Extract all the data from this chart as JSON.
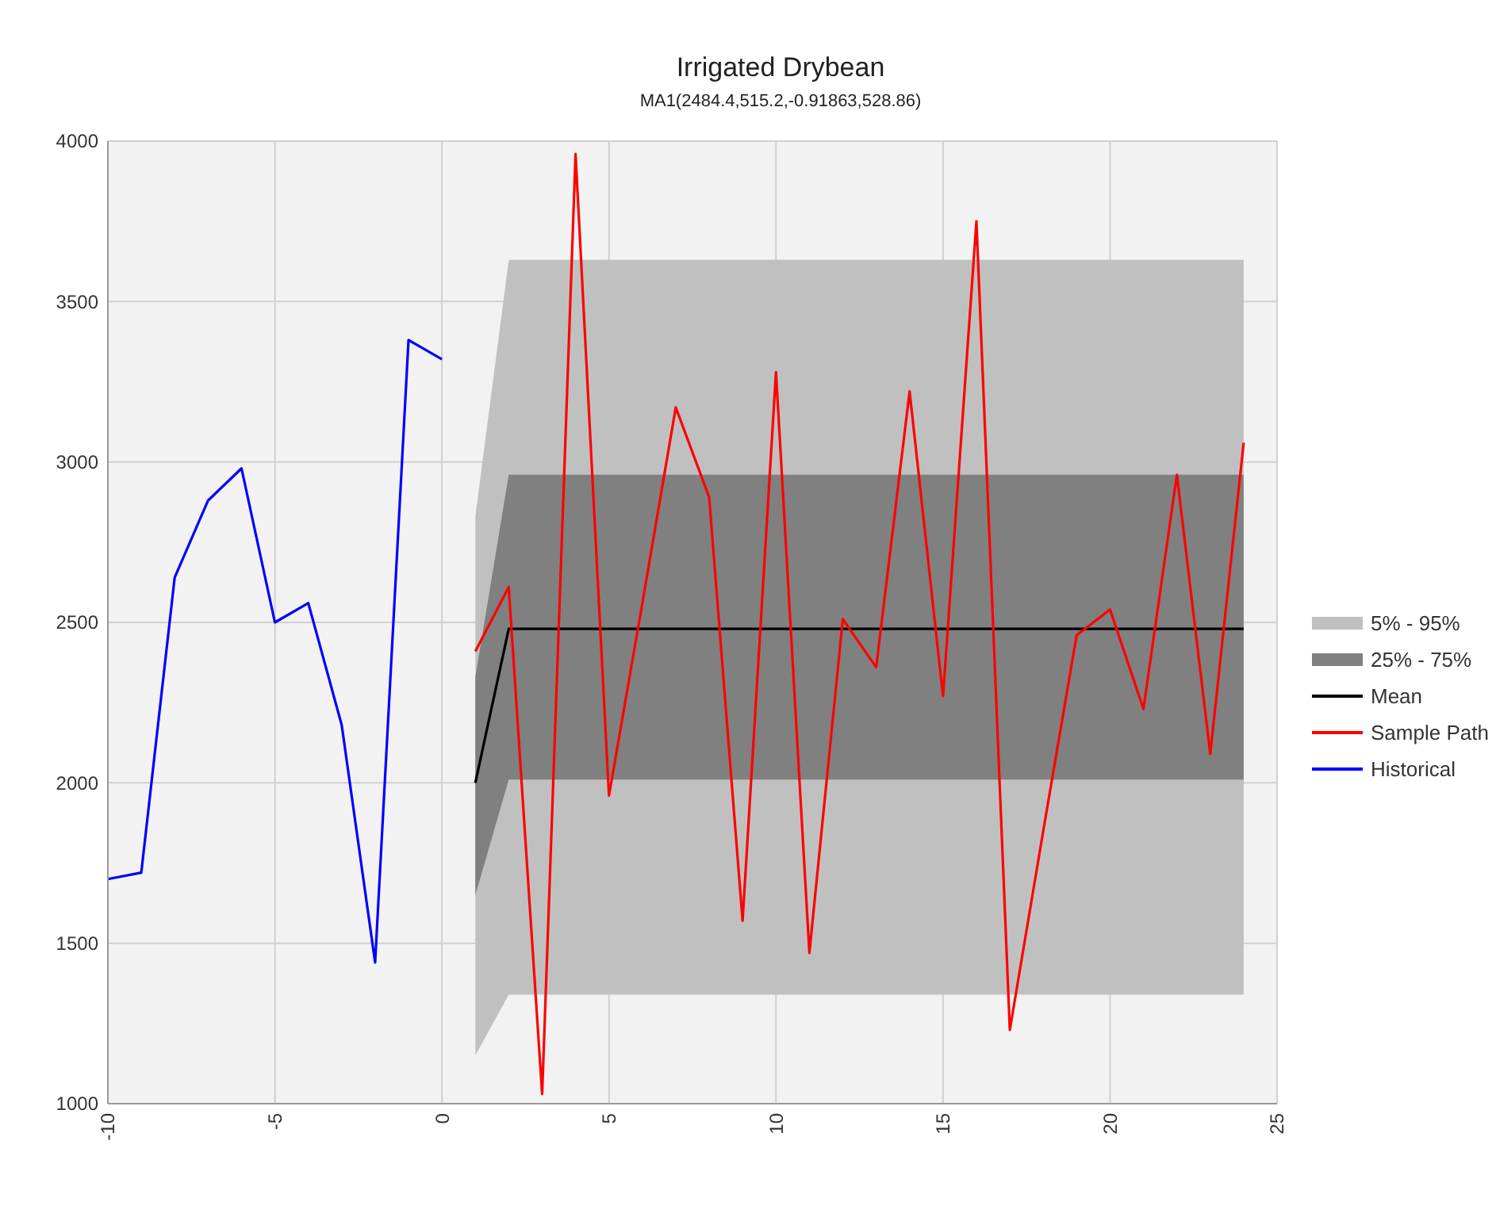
{
  "chart_data": {
    "type": "line",
    "title": "Irrigated Drybean",
    "subtitle": "MA1(2484.4,515.2,-0.91863,528.86)",
    "xlim": [
      -10,
      25
    ],
    "xticks": [
      -10,
      -5,
      0,
      5,
      10,
      15,
      20,
      25
    ],
    "ylim": [
      1000,
      4000
    ],
    "yticks": [
      1000,
      1500,
      2000,
      2500,
      3000,
      3500,
      4000
    ],
    "grid": true,
    "legend": "right",
    "series": [
      {
        "name": "5% - 95%",
        "type": "area",
        "color": "#c0c0c0",
        "x": [
          1,
          2,
          3,
          4,
          5,
          6,
          7,
          8,
          9,
          10,
          11,
          12,
          13,
          14,
          15,
          16,
          17,
          18,
          19,
          20,
          21,
          22,
          23,
          24
        ],
        "values": [
          null,
          null,
          null,
          null,
          null,
          null,
          null,
          null,
          null,
          null,
          null,
          null,
          null,
          null,
          null,
          null,
          null,
          null,
          null,
          null,
          null,
          null,
          null,
          null
        ],
        "lower": [
          1150,
          1340,
          1340,
          1340,
          1340,
          1340,
          1340,
          1340,
          1340,
          1340,
          1340,
          1340,
          1340,
          1340,
          1340,
          1340,
          1340,
          1340,
          1340,
          1340,
          1340,
          1340,
          1340,
          1340
        ],
        "upper": [
          2830,
          3630,
          3630,
          3630,
          3630,
          3630,
          3630,
          3630,
          3630,
          3630,
          3630,
          3630,
          3630,
          3630,
          3630,
          3630,
          3630,
          3630,
          3630,
          3630,
          3630,
          3630,
          3630,
          3630
        ]
      },
      {
        "name": "25% - 75%",
        "type": "area",
        "color": "#808080",
        "x": [
          1,
          2,
          3,
          4,
          5,
          6,
          7,
          8,
          9,
          10,
          11,
          12,
          13,
          14,
          15,
          16,
          17,
          18,
          19,
          20,
          21,
          22,
          23,
          24
        ],
        "values": [
          null,
          null,
          null,
          null,
          null,
          null,
          null,
          null,
          null,
          null,
          null,
          null,
          null,
          null,
          null,
          null,
          null,
          null,
          null,
          null,
          null,
          null,
          null,
          null
        ],
        "lower": [
          1650,
          2010,
          2010,
          2010,
          2010,
          2010,
          2010,
          2010,
          2010,
          2010,
          2010,
          2010,
          2010,
          2010,
          2010,
          2010,
          2010,
          2010,
          2010,
          2010,
          2010,
          2010,
          2010,
          2010
        ],
        "upper": [
          2330,
          2960,
          2960,
          2960,
          2960,
          2960,
          2960,
          2960,
          2960,
          2960,
          2960,
          2960,
          2960,
          2960,
          2960,
          2960,
          2960,
          2960,
          2960,
          2960,
          2960,
          2960,
          2960,
          2960
        ]
      },
      {
        "name": "Mean",
        "color": "#000000",
        "x": [
          1,
          2,
          3,
          4,
          5,
          6,
          7,
          8,
          9,
          10,
          11,
          12,
          13,
          14,
          15,
          16,
          17,
          18,
          19,
          20,
          21,
          22,
          23,
          24
        ],
        "values": [
          2000,
          2480,
          2480,
          2480,
          2480,
          2480,
          2480,
          2480,
          2480,
          2480,
          2480,
          2480,
          2480,
          2480,
          2480,
          2480,
          2480,
          2480,
          2480,
          2480,
          2480,
          2480,
          2480,
          2480
        ]
      },
      {
        "name": "Sample Path",
        "color": "#ff0000",
        "x": [
          1,
          2,
          3,
          4,
          5,
          6,
          7,
          8,
          9,
          10,
          11,
          12,
          13,
          14,
          15,
          16,
          17,
          18,
          19,
          20,
          21,
          22,
          23,
          24
        ],
        "values": [
          2410,
          2610,
          1030,
          3960,
          1960,
          2560,
          3170,
          2890,
          1570,
          3280,
          1470,
          2510,
          2360,
          3220,
          2270,
          3750,
          1230,
          1850,
          2460,
          2540,
          2230,
          2960,
          2090,
          3060
        ]
      },
      {
        "name": "Historical",
        "color": "#0000ff",
        "x": [
          -10,
          -9,
          -8,
          -7,
          -6,
          -5,
          -4,
          -3,
          -2,
          -1,
          0
        ],
        "values": [
          1700,
          1720,
          2640,
          2880,
          2980,
          2500,
          2560,
          2180,
          1440,
          3380,
          3320
        ]
      }
    ]
  }
}
